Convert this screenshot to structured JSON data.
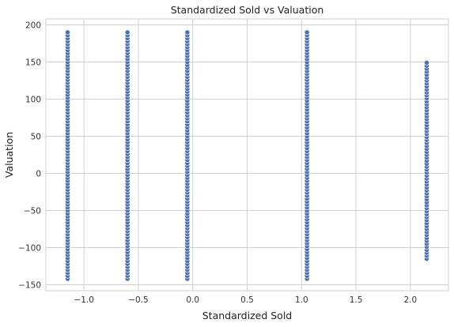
{
  "chart_data": {
    "type": "scatter",
    "title": "Standardized Sold vs Valuation",
    "xlabel": "Standardized Sold",
    "ylabel": "Valuation",
    "xlim": [
      -1.35,
      2.35
    ],
    "ylim": [
      -158,
      208
    ],
    "xticks": [
      -1.0,
      -0.5,
      0.0,
      0.5,
      1.0,
      1.5,
      2.0
    ],
    "xtick_labels": [
      "−1.0",
      "−0.5",
      "0.0",
      "0.5",
      "1.0",
      "1.5",
      "2.0"
    ],
    "yticks": [
      -150,
      -100,
      -50,
      0,
      50,
      100,
      150,
      200
    ],
    "ytick_labels": [
      "−150",
      "−100",
      "−50",
      "0",
      "50",
      "100",
      "150",
      "200"
    ],
    "grid": true,
    "legend": "none",
    "point_color": "#4c72b0",
    "series": [
      {
        "values": [
          {
            "x": -1.15,
            "y_min": -142,
            "y_max": 190
          },
          {
            "x": -0.6,
            "y_min": -142,
            "y_max": 190
          },
          {
            "x": -0.05,
            "y_min": -142,
            "y_max": 190
          },
          {
            "x": 1.05,
            "y_min": -142,
            "y_max": 190
          },
          {
            "x": 2.15,
            "y_min": -115,
            "y_max": 150
          }
        ]
      }
    ]
  }
}
